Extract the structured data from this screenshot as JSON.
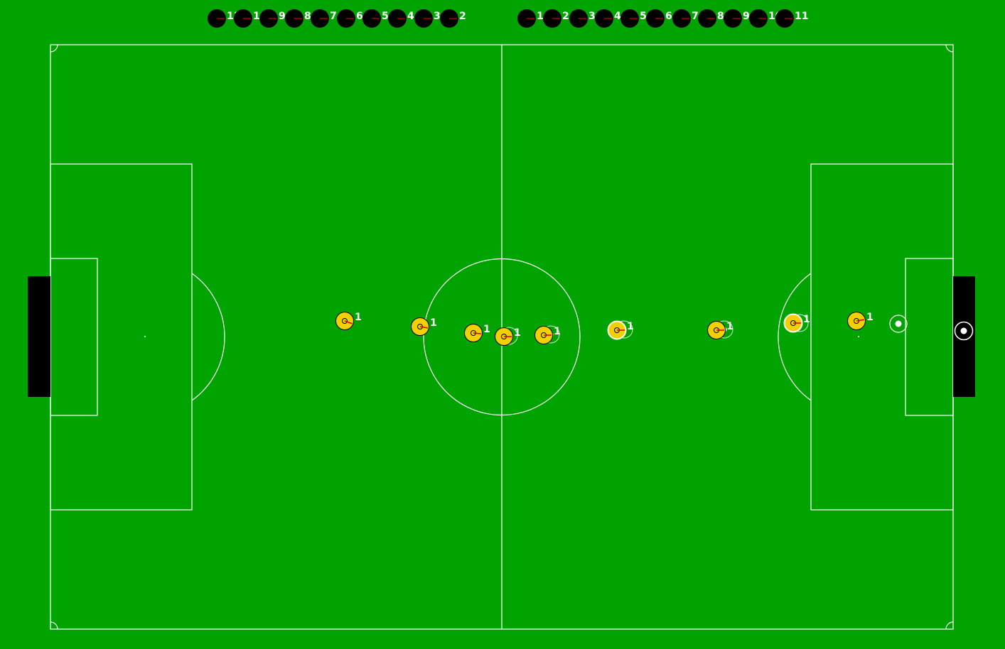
{
  "colors": {
    "field": "#00a300",
    "lines": "#ffffff",
    "goal": "#000000",
    "player_fill": "#f2d000",
    "player_edge": "#000000",
    "heading": "#d40000",
    "bench_player": "#000000",
    "label": "#ffffff"
  },
  "bench": {
    "left_team": [
      "11",
      "10",
      "9",
      "8",
      "7",
      "6",
      "5",
      "4",
      "3",
      "2"
    ],
    "right_team": [
      "1",
      "2",
      "3",
      "4",
      "5",
      "6",
      "7",
      "8",
      "9",
      "10",
      "11"
    ]
  },
  "players": [
    {
      "label": "1"
    },
    {
      "label": "1"
    },
    {
      "label": "1"
    },
    {
      "label": "1"
    },
    {
      "label": "1"
    },
    {
      "label": "1"
    },
    {
      "label": "1"
    },
    {
      "label": "1"
    },
    {
      "label": "1"
    }
  ],
  "ball": {
    "icon": "ball-icon"
  }
}
